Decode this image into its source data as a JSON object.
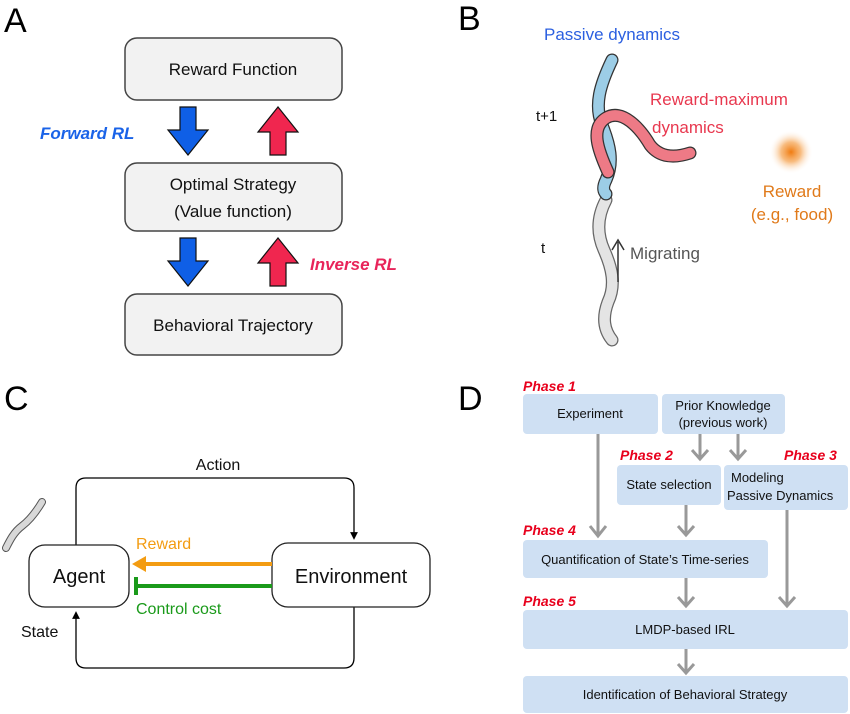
{
  "panel_a": {
    "letter": "A",
    "reward_function": "Reward Function",
    "optimal_strategy_line1": "Optimal Strategy",
    "optimal_strategy_line2": "(Value function)",
    "behavioral_trajectory": "Behavioral Trajectory",
    "forward_rl": "Forward RL",
    "inverse_rl": "Inverse RL",
    "colors": {
      "blue_arrow": "#0f5fe6",
      "red_arrow": "#f0264f",
      "forward_text": "#1a63e8",
      "inverse_text": "#e8245a"
    }
  },
  "panel_b": {
    "letter": "B",
    "passive_dynamics": "Passive dynamics",
    "reward_max_line1": "Reward-maximum",
    "reward_max_line2": "dynamics",
    "t_plus_1": "t+1",
    "t": "t",
    "migrating": "Migrating",
    "reward_line1": "Reward",
    "reward_line2": "(e.g., food)",
    "colors": {
      "passive": "#2b5fe0",
      "reward_max": "#e8384f",
      "reward": "#e07a1a"
    }
  },
  "panel_c": {
    "letter": "C",
    "action": "Action",
    "agent": "Agent",
    "environment": "Environment",
    "reward": "Reward",
    "control_cost": "Control cost",
    "state": "State",
    "colors": {
      "reward": "#f39c12",
      "control_cost": "#1a9a1a"
    }
  },
  "panel_d": {
    "letter": "D",
    "phase1": "Phase 1",
    "phase2": "Phase 2",
    "phase3": "Phase 3",
    "phase4": "Phase 4",
    "phase5": "Phase 5",
    "experiment": "Experiment",
    "prior_knowledge_line1": "Prior Knowledge",
    "prior_knowledge_line2": "(previous work)",
    "state_selection": "State selection",
    "modeling_line1": "Modeling",
    "modeling_line2": "Passive Dynamics",
    "quantification": "Quantification of State’s Time-series",
    "lmdp_irl": "LMDP-based IRL",
    "identification": "Identification of Behavioral Strategy",
    "colors": {
      "box": "#cfe0f3",
      "arrow": "#999999",
      "phase": "#e8001c"
    }
  }
}
